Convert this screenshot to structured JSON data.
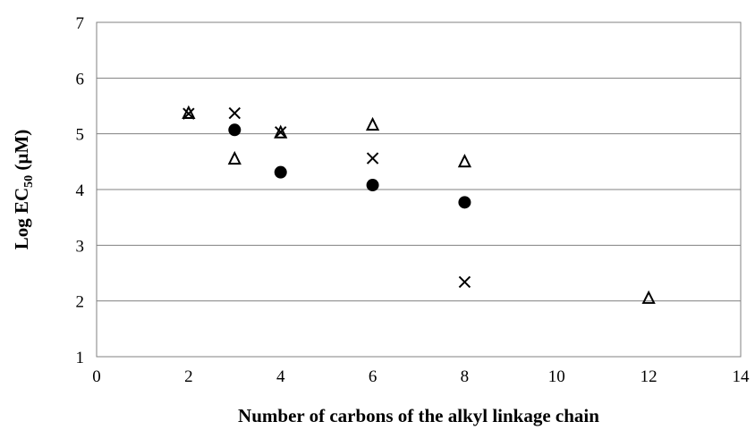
{
  "chart_data": {
    "type": "scatter",
    "title": "",
    "xlabel": "Number of carbons of the alkyl linkage chain",
    "ylabel": {
      "prefix": "Log EC",
      "subscript": "50",
      "suffix": " (µM)"
    },
    "xlim": [
      0,
      14
    ],
    "ylim": [
      1,
      7
    ],
    "x_ticks": [
      0,
      2,
      4,
      6,
      8,
      10,
      12,
      14
    ],
    "y_ticks": [
      1,
      2,
      3,
      4,
      5,
      6,
      7
    ],
    "grid": "horizontal",
    "legend": "none",
    "series": [
      {
        "marker": "filled-circle",
        "color": "#000000",
        "points": [
          {
            "x": 3,
            "y": 5.07
          },
          {
            "x": 4,
            "y": 4.31
          },
          {
            "x": 6,
            "y": 4.08
          },
          {
            "x": 8,
            "y": 3.77
          }
        ]
      },
      {
        "marker": "open-triangle",
        "color": "#000000",
        "points": [
          {
            "x": 2,
            "y": 5.38
          },
          {
            "x": 3,
            "y": 4.56
          },
          {
            "x": 4,
            "y": 5.03
          },
          {
            "x": 6,
            "y": 5.17
          },
          {
            "x": 8,
            "y": 4.51
          },
          {
            "x": 12,
            "y": 2.06
          }
        ]
      },
      {
        "marker": "cross",
        "color": "#000000",
        "points": [
          {
            "x": 2,
            "y": 5.36
          },
          {
            "x": 3,
            "y": 5.37
          },
          {
            "x": 4,
            "y": 5.03
          },
          {
            "x": 6,
            "y": 4.56
          },
          {
            "x": 8,
            "y": 2.34
          }
        ]
      }
    ]
  }
}
